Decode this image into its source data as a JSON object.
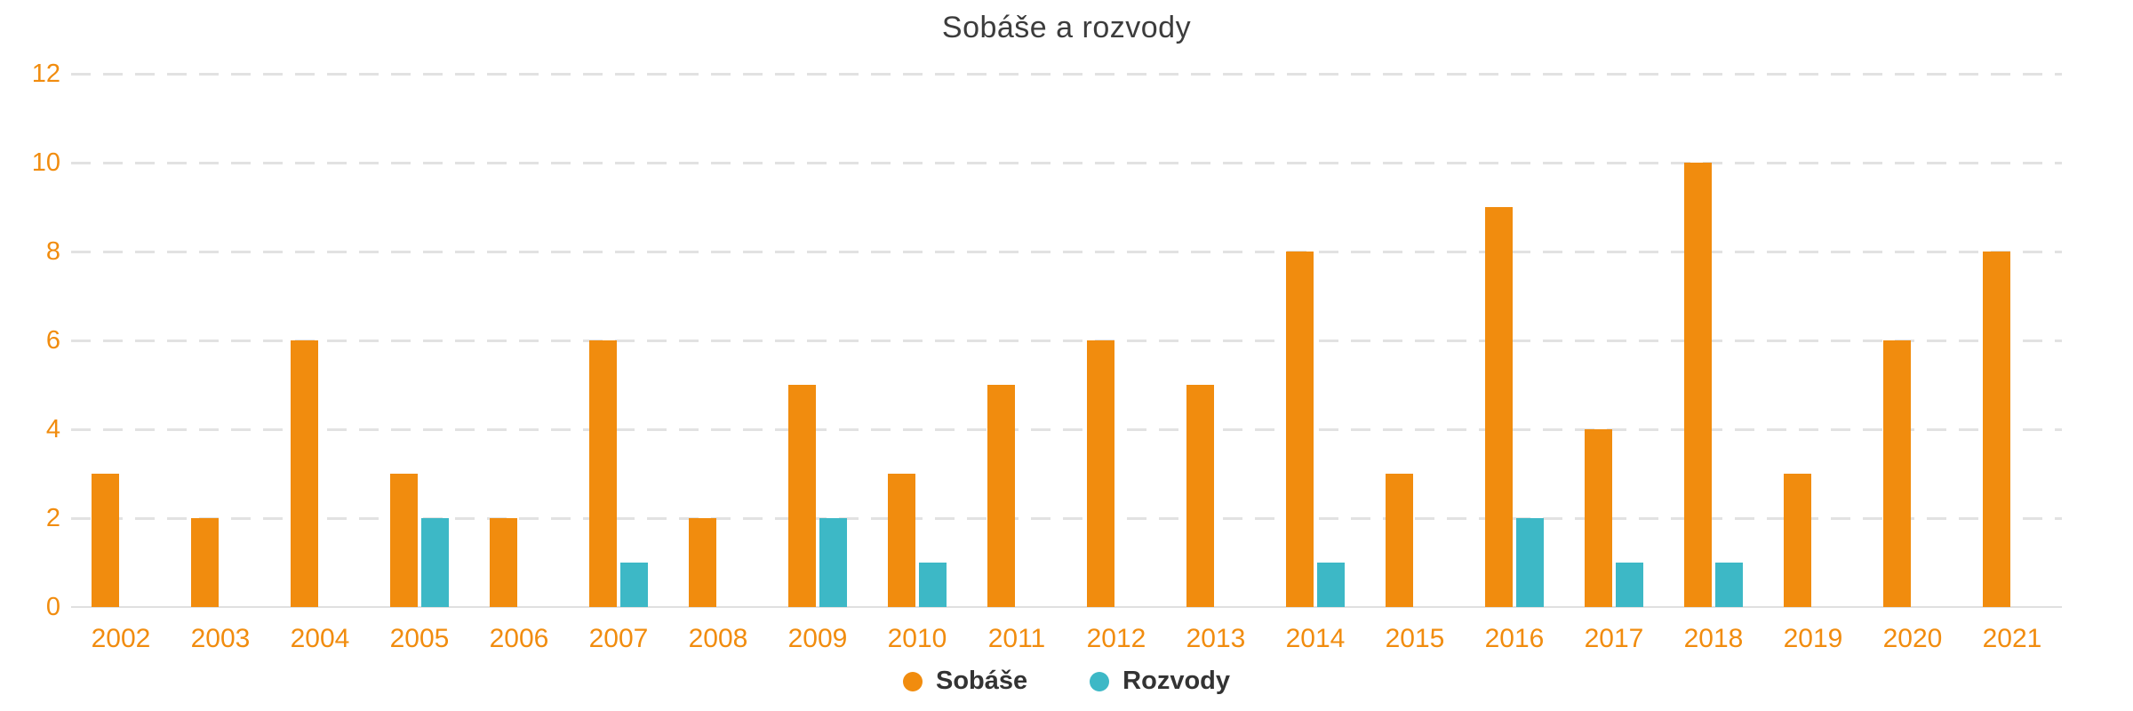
{
  "chart_data": {
    "type": "bar",
    "title": "Sobáše a rozvody",
    "categories": [
      "2002",
      "2003",
      "2004",
      "2005",
      "2006",
      "2007",
      "2008",
      "2009",
      "2010",
      "2011",
      "2012",
      "2013",
      "2014",
      "2015",
      "2016",
      "2017",
      "2018",
      "2019",
      "2020",
      "2021"
    ],
    "series": [
      {
        "name": "Sobáše",
        "color": "#f18c0e",
        "values": [
          3,
          2,
          6,
          3,
          2,
          6,
          2,
          5,
          3,
          5,
          6,
          5,
          8,
          3,
          9,
          4,
          10,
          3,
          6,
          8
        ]
      },
      {
        "name": "Rozvody",
        "color": "#3db8c6",
        "values": [
          0,
          0,
          0,
          2,
          0,
          1,
          0,
          2,
          1,
          0,
          0,
          0,
          1,
          0,
          2,
          1,
          1,
          0,
          0,
          0
        ]
      }
    ],
    "xlabel": "",
    "ylabel": "",
    "ylim": [
      0,
      12
    ],
    "yticks": [
      0,
      2,
      4,
      6,
      8,
      10,
      12
    ],
    "grid": "horizontal-dashed",
    "legend_position": "bottom-center",
    "colors": {
      "axis_label": "#f18c0e",
      "gridline": "#e2e2e2",
      "baseline": "#e0e0e0",
      "title_text": "#3c3c3c",
      "legend_text": "#333333"
    }
  }
}
